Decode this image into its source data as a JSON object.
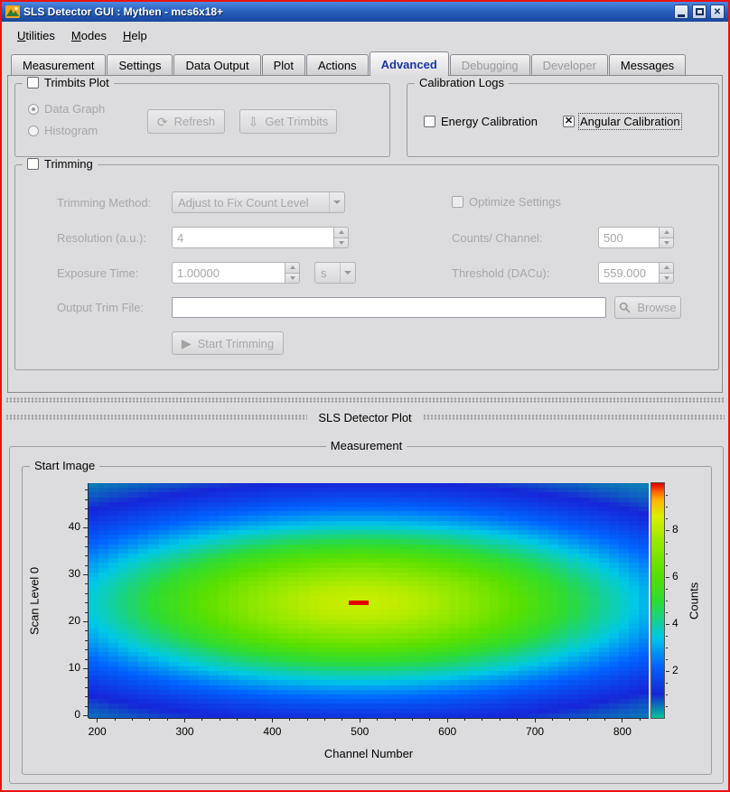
{
  "window": {
    "title": "SLS Detector GUI : Mythen - mcs6x18+"
  },
  "icons": {
    "close_glyph": "✕",
    "check_glyph": "✕",
    "refresh_glyph": "⟳",
    "download_glyph": "⇩",
    "play_glyph": "▶"
  },
  "menu": {
    "items": [
      {
        "accel": "U",
        "rest": "tilities"
      },
      {
        "accel": "M",
        "rest": "odes"
      },
      {
        "accel": "H",
        "rest": "elp"
      }
    ]
  },
  "tabs": [
    {
      "label": "Measurement",
      "state": "normal"
    },
    {
      "label": "Settings",
      "state": "normal"
    },
    {
      "label": "Data Output",
      "state": "normal"
    },
    {
      "label": "Plot",
      "state": "normal"
    },
    {
      "label": "Actions",
      "state": "normal"
    },
    {
      "label": "Advanced",
      "state": "selected"
    },
    {
      "label": "Debugging",
      "state": "disabled"
    },
    {
      "label": "Developer",
      "state": "disabled"
    },
    {
      "label": "Messages",
      "state": "normal"
    }
  ],
  "trimbits_plot": {
    "title": "Trimbits Plot",
    "checked": false,
    "data_graph": "Data Graph",
    "histogram": "Histogram",
    "refresh": "Refresh",
    "get_trimbits": "Get Trimbits"
  },
  "calibration_logs": {
    "title": "Calibration Logs",
    "energy": "Energy Calibration",
    "energy_checked": false,
    "angular": "Angular Calibration",
    "angular_checked": true
  },
  "trimming": {
    "title": "Trimming",
    "checked": false,
    "method_label": "Trimming Method:",
    "method_value": "Adjust to Fix Count Level",
    "optimize_label": "Optimize Settings",
    "resolution_label": "Resolution (a.u.):",
    "resolution_value": "4",
    "counts_label": "Counts/ Channel:",
    "counts_value": "500",
    "exposure_label": "Exposure Time:",
    "exposure_value": "1.00000",
    "exposure_unit": "s",
    "threshold_label": "Threshold (DACu):",
    "threshold_value": "559.000",
    "output_label": "Output Trim File:",
    "output_value": "",
    "browse": "Browse",
    "start": "Start Trimming"
  },
  "dock": {
    "plot_title": "SLS Detector Plot"
  },
  "measurement": {
    "title": "Measurement",
    "start_image": "Start Image"
  },
  "chart_data": {
    "type": "heatmap",
    "title": "Start Image",
    "xlabel": "Channel Number",
    "ylabel": "Scan Level 0",
    "colorbar_label": "Counts",
    "x_range": [
      190,
      830
    ],
    "y_range": [
      -0.5,
      49.5
    ],
    "z_range": [
      0,
      10
    ],
    "x_ticks": [
      200,
      300,
      400,
      500,
      600,
      700,
      800
    ],
    "x_minor_step": 20,
    "y_ticks": [
      0,
      10,
      20,
      30,
      40
    ],
    "y_minor_step": 2,
    "colorbar_ticks": [
      2,
      4,
      6,
      8
    ],
    "colorbar_minor_step": 0.5,
    "grid": {
      "cols": 56,
      "rows": 50
    },
    "model": {
      "type": "gaussian2d",
      "amplitude": 8.3,
      "center_x": 500,
      "center_y": 24,
      "sigma_x": 235,
      "sigma_y": 12.5,
      "hotspot": {
        "x_min": 488,
        "x_max": 512,
        "y": 24,
        "value": 10
      }
    },
    "colormap": [
      [
        0.0,
        "#00c39a"
      ],
      [
        0.1,
        "#1626d8"
      ],
      [
        0.22,
        "#0064ff"
      ],
      [
        0.34,
        "#00c8e6"
      ],
      [
        0.5,
        "#2edc32"
      ],
      [
        0.62,
        "#5ae000"
      ],
      [
        0.76,
        "#9ce900"
      ],
      [
        0.86,
        "#daf000"
      ],
      [
        0.93,
        "#ffb400"
      ],
      [
        0.965,
        "#ff6400"
      ],
      [
        1.0,
        "#e10000"
      ]
    ]
  }
}
